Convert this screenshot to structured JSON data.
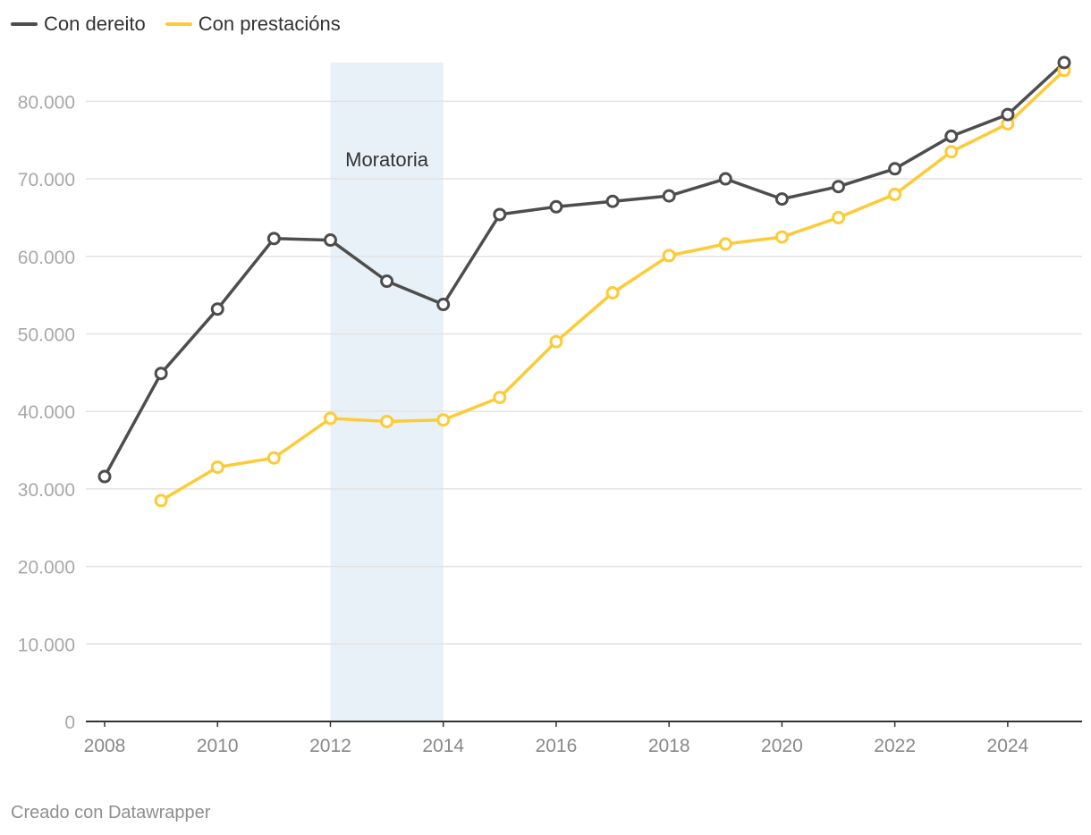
{
  "chart_data": {
    "type": "line",
    "title": "",
    "xlabel": "",
    "ylabel": "",
    "x": [
      2008,
      2009,
      2010,
      2011,
      2012,
      2013,
      2014,
      2015,
      2016,
      2017,
      2018,
      2019,
      2020,
      2021,
      2022,
      2023,
      2024,
      2025
    ],
    "series": [
      {
        "name": "Con dereito",
        "color": "#4d4d4d",
        "values": [
          31600,
          44900,
          53200,
          62300,
          62100,
          56800,
          53800,
          65400,
          66400,
          67100,
          67800,
          70000,
          67400,
          69000,
          71300,
          75500,
          78300,
          85000
        ]
      },
      {
        "name": "Con prestacións",
        "color": "#fdcb36",
        "values": [
          null,
          28500,
          32800,
          34000,
          39100,
          38700,
          38900,
          41800,
          49000,
          55300,
          60100,
          61600,
          62500,
          65000,
          68000,
          73500,
          77100,
          84000
        ]
      }
    ],
    "ylim": [
      0,
      85000
    ],
    "xlim": [
      2008,
      2025
    ],
    "yticks": [
      0,
      10000,
      20000,
      30000,
      40000,
      50000,
      60000,
      70000,
      80000
    ],
    "ytick_labels": [
      "0",
      "10.000",
      "20.000",
      "30.000",
      "40.000",
      "50.000",
      "60.000",
      "70.000",
      "80.000"
    ],
    "xticks": [
      2008,
      2010,
      2012,
      2014,
      2016,
      2018,
      2020,
      2022,
      2024
    ],
    "xtick_labels": [
      "2008",
      "2010",
      "2012",
      "2014",
      "2016",
      "2018",
      "2020",
      "2022",
      "2024"
    ],
    "grid": true,
    "legend": "top-left",
    "annotations": [
      {
        "type": "range",
        "x_start": 2012,
        "x_end": 2014,
        "label": "Moratoria",
        "color": "#e8f1f8"
      }
    ]
  },
  "credit": "Creado con Datawrapper"
}
